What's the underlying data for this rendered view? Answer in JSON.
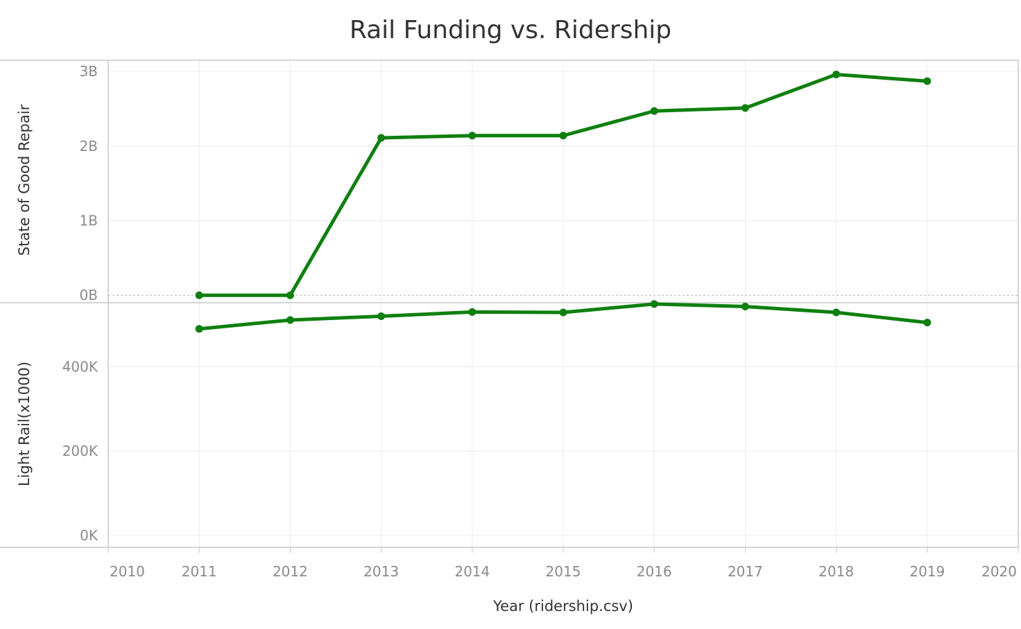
{
  "chart_data": {
    "type": "line",
    "title": "Rail Funding vs. Ridership",
    "xlabel": "Year (ridership.csv)",
    "x_ticks": [
      "2010",
      "2011",
      "2012",
      "2013",
      "2014",
      "2015",
      "2016",
      "2017",
      "2018",
      "2019",
      "2020"
    ],
    "xlim": [
      2010,
      2020
    ],
    "x": [
      2011,
      2012,
      2013,
      2014,
      2015,
      2016,
      2017,
      2018,
      2019
    ],
    "grid": true,
    "line_color": "#0f7f0f",
    "panels": [
      {
        "ylabel": "State of Good Repair",
        "y_ticks": [
          {
            "value": 0,
            "label": "0B"
          },
          {
            "value": 1000000000,
            "label": "1B"
          },
          {
            "value": 2000000000,
            "label": "2B"
          },
          {
            "value": 3000000000,
            "label": "3B"
          }
        ],
        "ylim": [
          -100000000,
          3150000000
        ],
        "series": [
          {
            "values": [
              0,
              0,
              2110000000,
              2140000000,
              2140000000,
              2470000000,
              2510000000,
              2960000000,
              2870000000
            ]
          }
        ]
      },
      {
        "ylabel": "Light Rail(x1000)",
        "y_ticks": [
          {
            "value": 0,
            "label": "0K"
          },
          {
            "value": 200000,
            "label": "200K"
          },
          {
            "value": 400000,
            "label": "400K"
          }
        ],
        "ylim": [
          -28000,
          552000
        ],
        "series": [
          {
            "values": [
              490000,
              511000,
              520000,
              530000,
              529000,
              549000,
              543000,
              529000,
              505000
            ]
          }
        ]
      }
    ]
  }
}
